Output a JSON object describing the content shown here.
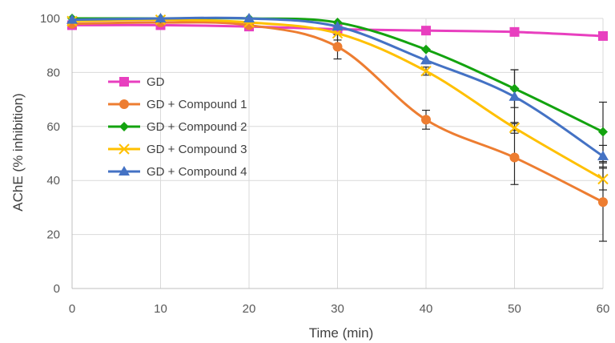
{
  "chart_data": {
    "type": "line",
    "title": "",
    "xlabel": "Time (min)",
    "ylabel": "AChE (% inhibition)",
    "x": [
      0,
      10,
      20,
      30,
      40,
      50,
      60
    ],
    "xlim": [
      0,
      60
    ],
    "ylim": [
      0,
      100
    ],
    "xticks": [
      0,
      10,
      20,
      30,
      40,
      50,
      60
    ],
    "yticks": [
      0,
      20,
      40,
      60,
      80,
      100
    ],
    "grid": true,
    "legend_placement": "center-left",
    "series": [
      {
        "name": "GD",
        "color": "#e83fbf",
        "marker": "square",
        "values": [
          97.5,
          97.5,
          97,
          96,
          95.5,
          95,
          93.5
        ],
        "errors": [
          0,
          0,
          0,
          0,
          0,
          0,
          0
        ]
      },
      {
        "name": "GD + Compound 1",
        "color": "#ed7d31",
        "marker": "circle",
        "values": [
          98,
          98.5,
          97.5,
          89.5,
          62.5,
          48.5,
          32
        ],
        "errors": [
          0,
          0,
          0,
          4.5,
          3.5,
          10,
          14.5
        ]
      },
      {
        "name": "GD + Compound 2",
        "color": "#13a30f",
        "marker": "diamond",
        "values": [
          100,
          100,
          100,
          98.5,
          88.5,
          74,
          58
        ],
        "errors": [
          0,
          0,
          0,
          0,
          0,
          7,
          11
        ]
      },
      {
        "name": "GD + Compound 3",
        "color": "#ffc000",
        "marker": "x",
        "values": [
          99,
          99.5,
          98.5,
          94.5,
          80.5,
          59.5,
          40.5
        ],
        "errors": [
          0,
          0,
          0,
          2.5,
          1.5,
          2,
          4
        ]
      },
      {
        "name": "GD + Compound 4",
        "color": "#4472c4",
        "marker": "triangle",
        "values": [
          99.5,
          100,
          100,
          97,
          84.5,
          71,
          49
        ],
        "errors": [
          0,
          0,
          0,
          0,
          0,
          10,
          4
        ]
      }
    ]
  }
}
